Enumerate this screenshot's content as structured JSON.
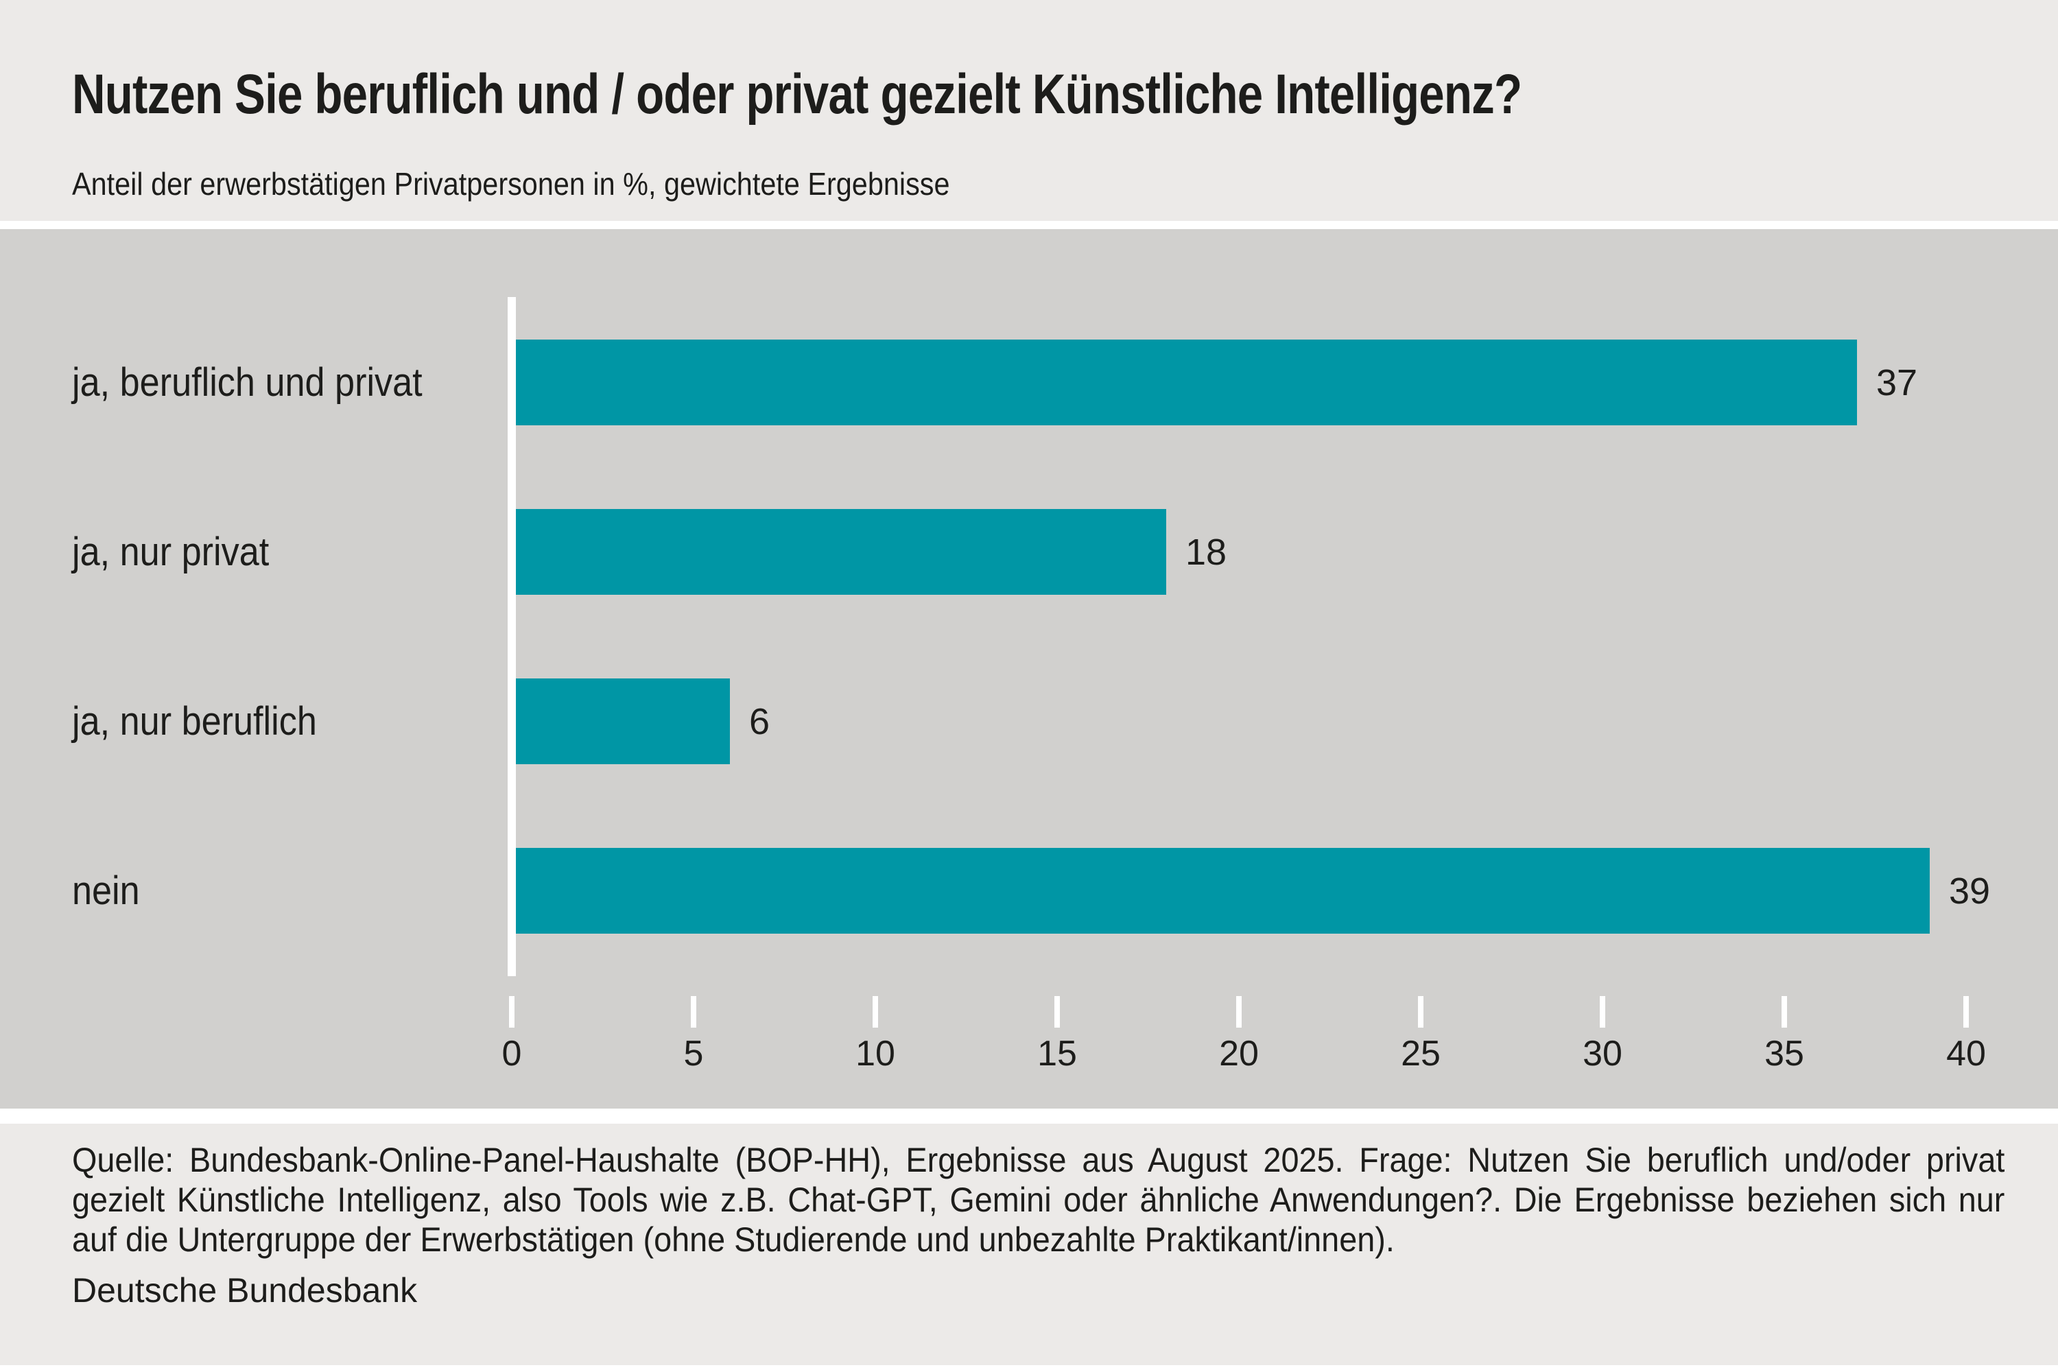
{
  "page": {
    "background": "#ffffff",
    "band_background": "#eceae8",
    "plot_background": "#d1d0ce"
  },
  "header": {
    "title": "Nutzen Sie beruflich und / oder privat gezielt Künstliche Intelligenz?",
    "subtitle": "Anteil der erwerbstätigen Privatpersonen in %, gewichtete Ergebnisse"
  },
  "chart_data": {
    "type": "bar",
    "orientation": "horizontal",
    "title": "Nutzen Sie beruflich und / oder privat gezielt Künstliche Intelligenz?",
    "subtitle": "Anteil der erwerbstätigen Privatpersonen in %, gewichtete Ergebnisse",
    "categories": [
      "ja, beruflich und privat",
      "ja, nur privat",
      "ja, nur beruflich",
      "nein"
    ],
    "values": [
      37,
      18,
      6,
      39
    ],
    "value_unit": "%",
    "xlabel": "",
    "ylabel": "",
    "xlim": [
      0,
      40
    ],
    "xticks": [
      0,
      5,
      10,
      15,
      20,
      25,
      30,
      35,
      40
    ],
    "grid": false,
    "legend": null,
    "bar_color": "#0096a5",
    "axis_color": "#ffffff",
    "label_color": "#1d1d1b"
  },
  "footer": {
    "source_note": "Quelle: Bundesbank-Online-Panel-Haushalte (BOP-HH), Ergebnisse aus August 2025. Frage: Nutzen Sie beruflich und/oder privat gezielt Künstliche Intelligenz, also Tools wie z.B. Chat-GPT, Gemini oder ähnliche Anwendungen?. Die Ergebnisse beziehen sich nur auf die Untergruppe der Erwerbstätigen (ohne Studierende und unbezahlte Praktikant/innen).",
    "publisher": "Deutsche Bundesbank"
  }
}
